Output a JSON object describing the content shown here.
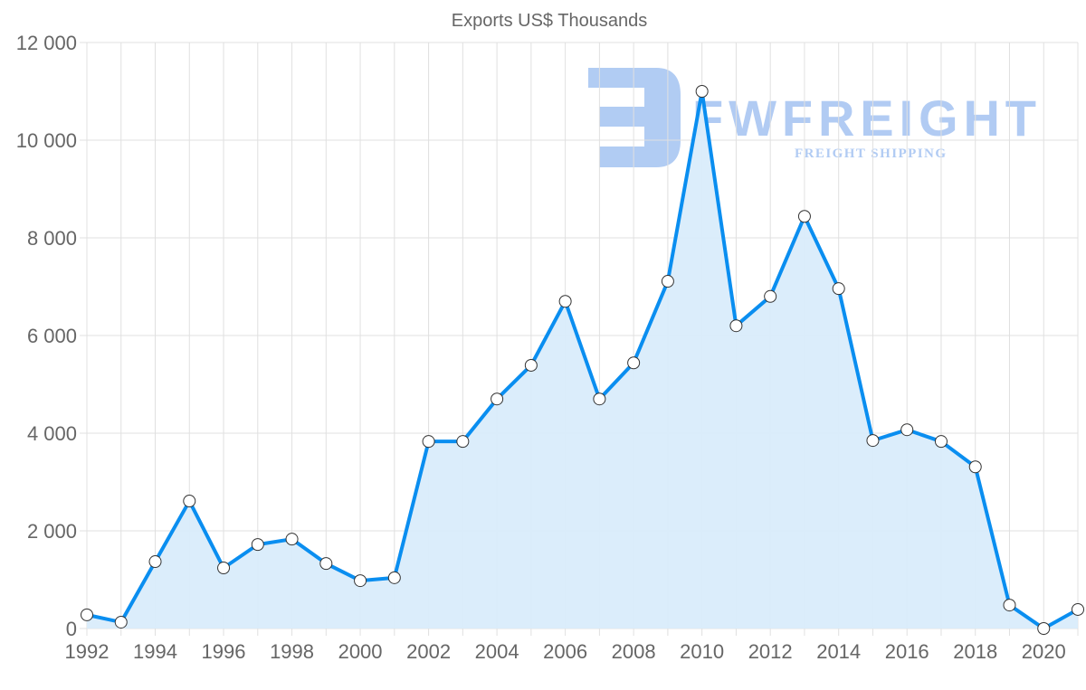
{
  "chart_data": {
    "type": "line",
    "title": "Exports US$ Thousands",
    "xlabel": "",
    "ylabel": "",
    "x": [
      1992,
      1993,
      1994,
      1995,
      1996,
      1997,
      1998,
      1999,
      2000,
      2001,
      2002,
      2003,
      2004,
      2005,
      2006,
      2007,
      2008,
      2009,
      2010,
      2011,
      2012,
      2013,
      2014,
      2015,
      2016,
      2017,
      2018,
      2019,
      2020,
      2021
    ],
    "series": [
      {
        "name": "Exports US$ Thousands",
        "values": [
          280,
          130,
          1370,
          2610,
          1240,
          1720,
          1830,
          1330,
          980,
          1040,
          3830,
          3830,
          4700,
          5390,
          6700,
          4700,
          5440,
          7110,
          11000,
          6200,
          6800,
          8440,
          6960,
          3850,
          4070,
          3830,
          3310,
          480,
          0,
          390
        ]
      }
    ],
    "ylim": [
      0,
      12000
    ],
    "xlim": [
      1992,
      2021
    ],
    "y_ticks": [
      "0",
      "2 000",
      "4 000",
      "6 000",
      "8 000",
      "10 000",
      "12 000"
    ],
    "x_ticks": [
      "1992",
      "1994",
      "1996",
      "1998",
      "2000",
      "2002",
      "2004",
      "2006",
      "2008",
      "2010",
      "2012",
      "2014",
      "2016",
      "2018",
      "2020"
    ],
    "grid": true,
    "fill": true,
    "colors": {
      "line": "#0a8ef0",
      "fill": "#d9ecfb",
      "grid": "#e0e0e0",
      "watermark": "#a9c6f2"
    }
  },
  "watermark": {
    "brand": "FWFREIGHT",
    "tagline": "FREIGHT SHIPPING"
  }
}
